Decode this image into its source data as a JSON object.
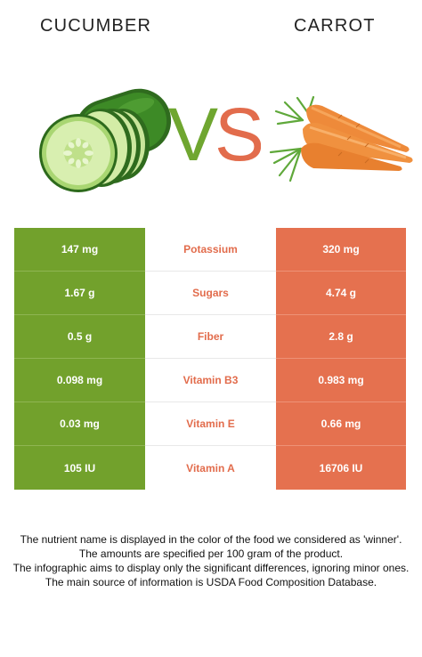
{
  "header": {
    "left_title": "CUCUMBER",
    "right_title": "CARROT"
  },
  "vs": {
    "v": "V",
    "s": "S"
  },
  "colors": {
    "winner_left": "#72a12c",
    "winner_right": "#e5714f",
    "vs_green": "#6fa630",
    "vs_red": "#e26c4c"
  },
  "icons": [
    "cucumber-image",
    "carrot-image"
  ],
  "rows": [
    {
      "nutrient": "Potassium",
      "left": "147 mg",
      "right": "320 mg"
    },
    {
      "nutrient": "Sugars",
      "left": "1.67 g",
      "right": "4.74 g"
    },
    {
      "nutrient": "Fiber",
      "left": "0.5 g",
      "right": "2.8 g"
    },
    {
      "nutrient": "Vitamin B3",
      "left": "0.098 mg",
      "right": "0.983 mg"
    },
    {
      "nutrient": "Vitamin E",
      "left": "0.03 mg",
      "right": "0.66 mg"
    },
    {
      "nutrient": "Vitamin A",
      "left": "105 IU",
      "right": "16706 IU"
    }
  ],
  "footer": {
    "line1": "The nutrient name is displayed in the color of the food we considered as 'winner'.",
    "line2": "The amounts are specified per 100 gram of the product.",
    "line3": "The infographic aims to display only the significant differences, ignoring minor ones.",
    "line4": "The main source of information is USDA Food Composition Database."
  }
}
